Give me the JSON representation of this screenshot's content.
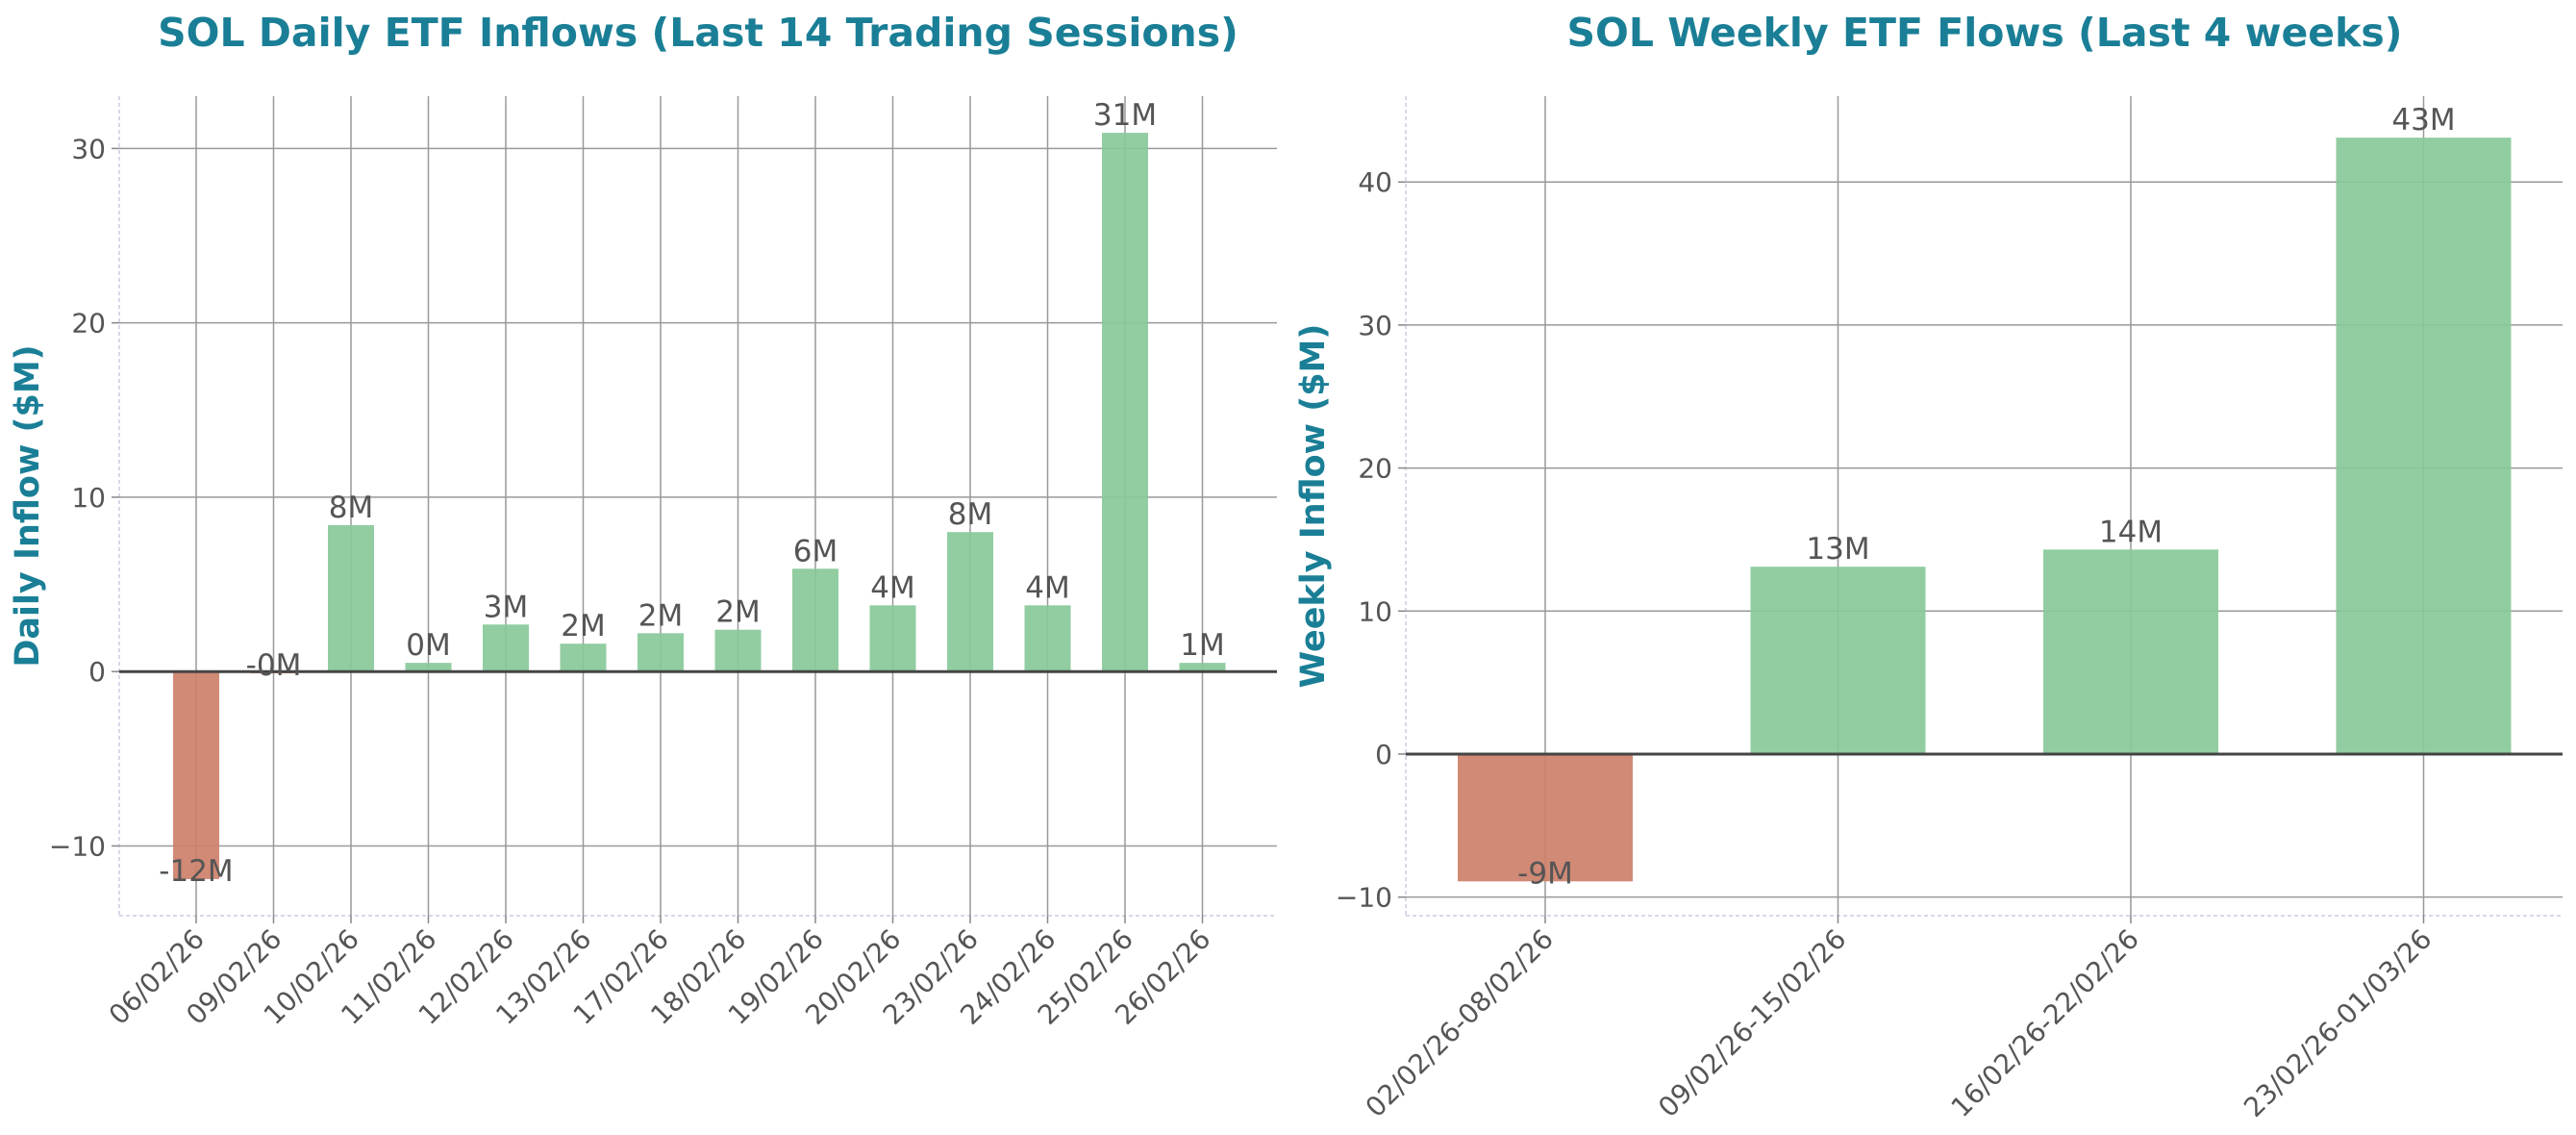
{
  "colors": {
    "title": "#1a7f96",
    "positive": "#88c999",
    "negative": "#cd806a",
    "grid": "#999999",
    "zero_line": "#444444",
    "text": "#555555"
  },
  "chart_data": [
    {
      "type": "bar",
      "title": "SOL Daily ETF Inflows (Last 14 Trading Sessions)",
      "xlabel": "",
      "ylabel": "Daily Inflow ($M)",
      "ylim": [
        -14,
        33
      ],
      "yticks": [
        -10,
        0,
        10,
        20,
        30
      ],
      "ytick_labels": [
        "−10",
        "0",
        "10",
        "20",
        "30"
      ],
      "grid": true,
      "categories": [
        "06/02/26",
        "09/02/26",
        "10/02/26",
        "11/02/26",
        "12/02/26",
        "13/02/26",
        "17/02/26",
        "18/02/26",
        "19/02/26",
        "20/02/26",
        "23/02/26",
        "24/02/26",
        "25/02/26",
        "26/02/26"
      ],
      "values": [
        -11.9,
        -0.1,
        8.4,
        0.5,
        2.7,
        1.6,
        2.2,
        2.4,
        5.9,
        3.8,
        8.0,
        3.8,
        30.9,
        0.5
      ],
      "labels": [
        "-12M",
        "-0M",
        "8M",
        "0M",
        "3M",
        "2M",
        "2M",
        "2M",
        "6M",
        "4M",
        "8M",
        "4M",
        "31M",
        "1M"
      ]
    },
    {
      "type": "bar",
      "title": "SOL Weekly ETF Flows (Last 4 weeks)",
      "xlabel": "",
      "ylabel": "Weekly Inflow ($M)",
      "ylim": [
        -11.3,
        46
      ],
      "yticks": [
        -10,
        0,
        10,
        20,
        30,
        40
      ],
      "ytick_labels": [
        "−10",
        "0",
        "10",
        "20",
        "30",
        "40"
      ],
      "grid": true,
      "categories": [
        "02/02/26-08/02/26",
        "09/02/26-15/02/26",
        "16/02/26-22/02/26",
        "23/02/26-01/03/26"
      ],
      "values": [
        -8.9,
        13.1,
        14.3,
        43.1
      ],
      "labels": [
        "-9M",
        "13M",
        "14M",
        "43M"
      ]
    }
  ]
}
